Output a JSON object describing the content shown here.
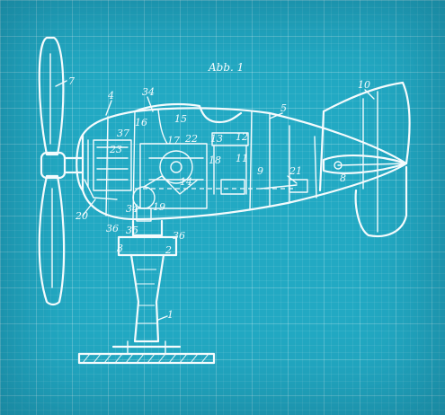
{
  "figure": {
    "caption": "Abb. 1",
    "line_color": "#f4fbfd",
    "background_color": "#22a9c3"
  },
  "refs": [
    "7",
    "4",
    "34",
    "15",
    "37",
    "16",
    "17",
    "22",
    "13",
    "12",
    "18",
    "11",
    "5",
    "10",
    "23",
    "9",
    "8",
    "21",
    "14",
    "19",
    "20",
    "36",
    "35",
    "34",
    "36",
    "3",
    "2",
    "1"
  ]
}
